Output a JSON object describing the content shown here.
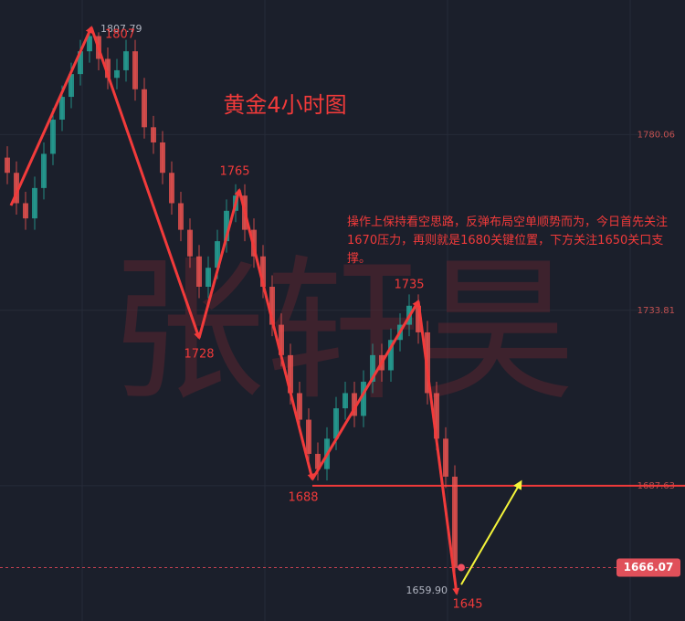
{
  "chart_data": {
    "type": "candlestick",
    "title": "黄金4小时图",
    "watermark": "张轩昊",
    "note": "操作上保持看空思路，反弹布局空单顺势而为，今日首先关注1670压力，再则就是1680关键位置，下方关注1650关口支撑。",
    "open": [
      1774,
      1770,
      1762,
      1758,
      1766,
      1775,
      1784,
      1790,
      1796,
      1802,
      1806,
      1800,
      1795,
      1797,
      1802,
      1792,
      1782,
      1778,
      1770,
      1762,
      1755,
      1748,
      1740,
      1745,
      1752,
      1760,
      1764,
      1755,
      1748,
      1740,
      1730,
      1722,
      1712,
      1705,
      1696,
      1692,
      1700,
      1708,
      1712,
      1706,
      1715,
      1722,
      1718,
      1726,
      1730,
      1735,
      1728,
      1712,
      1700,
      1690
    ],
    "high": [
      1777,
      1773,
      1765,
      1769,
      1778,
      1787,
      1793,
      1799,
      1805,
      1807.79,
      1807,
      1803,
      1800,
      1805,
      1805,
      1795,
      1785,
      1781,
      1773,
      1765,
      1758,
      1751,
      1748,
      1755,
      1763,
      1767,
      1767,
      1758,
      1751,
      1743,
      1733,
      1725,
      1715,
      1708,
      1699,
      1703,
      1711,
      1715,
      1715,
      1718,
      1725,
      1725,
      1729,
      1733,
      1738,
      1738,
      1731,
      1715,
      1703,
      1693
    ],
    "low": [
      1767,
      1759,
      1755,
      1755,
      1763,
      1772,
      1781,
      1787,
      1793,
      1799,
      1797,
      1792,
      1792,
      1794,
      1789,
      1779,
      1775,
      1767,
      1759,
      1752,
      1745,
      1737,
      1737,
      1742,
      1749,
      1757,
      1752,
      1745,
      1737,
      1727,
      1719,
      1709,
      1702,
      1693,
      1689,
      1689,
      1697,
      1705,
      1703,
      1703,
      1712,
      1715,
      1715,
      1723,
      1727,
      1725,
      1709,
      1697,
      1687,
      1659.9
    ],
    "close": [
      1770,
      1762,
      1758,
      1766,
      1775,
      1784,
      1790,
      1796,
      1802,
      1806,
      1800,
      1795,
      1797,
      1802,
      1792,
      1782,
      1778,
      1770,
      1762,
      1755,
      1748,
      1740,
      1745,
      1752,
      1760,
      1764,
      1755,
      1748,
      1740,
      1730,
      1722,
      1712,
      1705,
      1696,
      1692,
      1700,
      1708,
      1712,
      1706,
      1715,
      1722,
      1718,
      1726,
      1730,
      1735,
      1728,
      1712,
      1700,
      1690,
      1666.07
    ],
    "up_color": "#26a69a",
    "down_color": "#ef5350",
    "high_label": {
      "value": 1807.79,
      "label": "1807.79"
    },
    "low_label": {
      "value": 1659.9,
      "label": "1659.90"
    },
    "last_price": {
      "value": 1666.07,
      "label": "1666.07"
    },
    "ylim": [
      1652,
      1815.5
    ],
    "yticks": [
      1780.06,
      {
        "value": 1733.81,
        "label": "1733.81"
      },
      1687.63
    ],
    "support_line": 1687.63,
    "wave": {
      "x": [
        0.4,
        9.2,
        21,
        25.4,
        33.4,
        45,
        49.2
      ],
      "values": [
        1761.4,
        1808.3,
        1726.5,
        1765.5,
        1689.3,
        1736.2,
        1659.2
      ],
      "color": "#f23b3b"
    },
    "wave_labels": [
      "1807",
      "1728",
      "1765",
      "1688",
      "1735",
      "1645"
    ],
    "forecast": {
      "x": [
        49.7,
        56.2
      ],
      "values": [
        1661.6,
        1688.5
      ],
      "color": "#f5f53a"
    }
  }
}
